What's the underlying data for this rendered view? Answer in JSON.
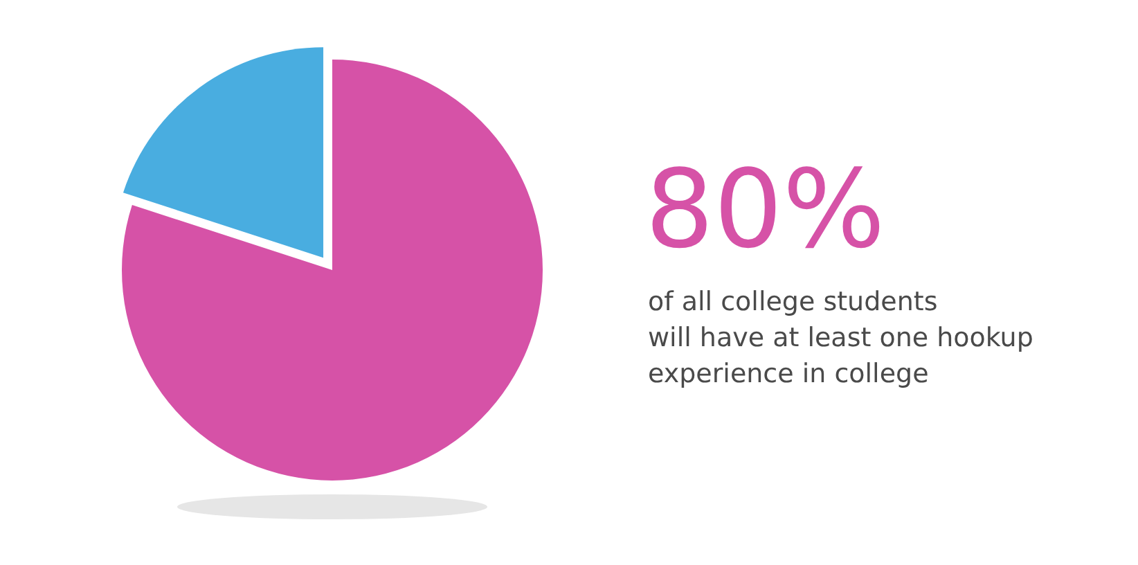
{
  "chart_data": {
    "type": "pie",
    "categories": [
      null,
      null
    ],
    "values": [
      80,
      20
    ],
    "colors": [
      "#d652a7",
      "#49ade0"
    ],
    "annotations": [
      "80%",
      "of all college students",
      "will have at least one hookup",
      "experience in college"
    ]
  }
}
